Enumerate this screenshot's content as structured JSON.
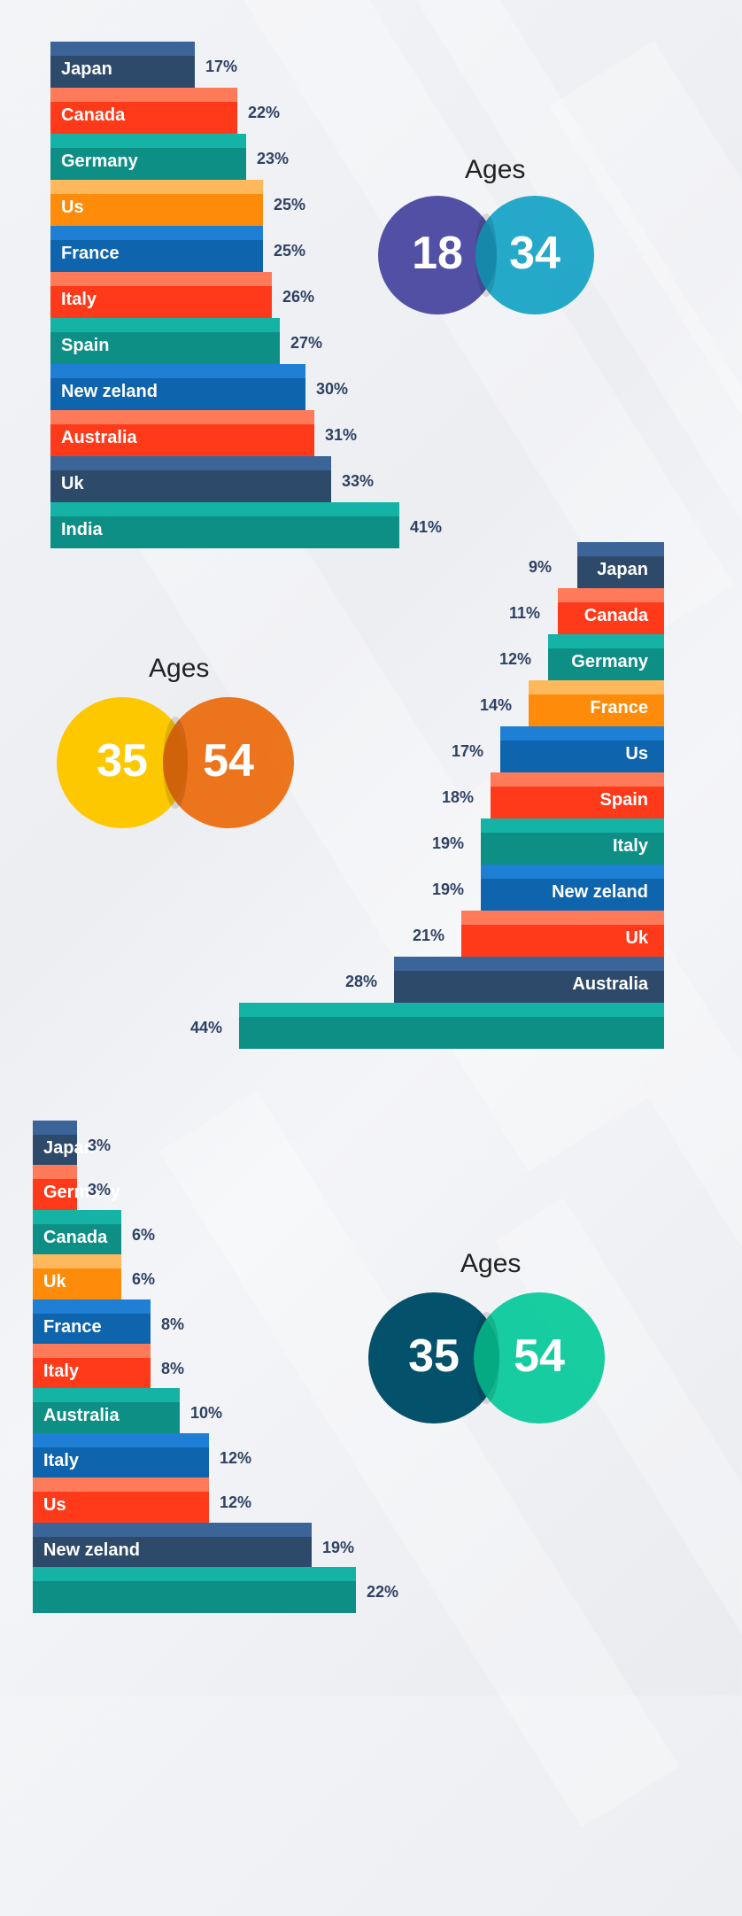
{
  "palette": {
    "navy": {
      "top": "#3b6499",
      "body": "#2d4a6a"
    },
    "orange": {
      "top": "#ff7a59",
      "body": "#ff3a1a"
    },
    "teal": {
      "top": "#14b3a6",
      "body": "#0d8f86"
    },
    "amber": {
      "top": "#ffb95c",
      "body": "#fe8c0a"
    },
    "blue": {
      "top": "#1e7fd4",
      "body": "#0e64ad"
    }
  },
  "chart_data": [
    {
      "type": "bar",
      "title": "Ages",
      "age_range": [
        "18",
        "34"
      ],
      "orientation": "horizontal",
      "anchor": "left",
      "categories": [
        "Japan",
        "Canada",
        "Germany",
        "Us",
        "France",
        "Italy",
        "Spain",
        "New zeland",
        "Australia",
        "Uk",
        "India"
      ],
      "values": [
        17,
        22,
        23,
        25,
        25,
        26,
        27,
        30,
        31,
        33,
        41
      ],
      "value_labels": [
        "17%",
        "22%",
        "23%",
        "25%",
        "25%",
        "26%",
        "27%",
        "30%",
        "31%",
        "33%",
        "41%"
      ],
      "colors": [
        "navy",
        "orange",
        "teal",
        "amber",
        "blue",
        "orange",
        "teal",
        "blue",
        "orange",
        "navy",
        "teal"
      ],
      "circle_colors": [
        "#5150a5",
        "#16a2c5"
      ]
    },
    {
      "type": "bar",
      "title": "Ages",
      "age_range": [
        "35",
        "54"
      ],
      "orientation": "horizontal",
      "anchor": "right",
      "categories": [
        "Japan",
        "Canada",
        "Germany",
        "France",
        "Us",
        "Spain",
        "Italy",
        "New zeland",
        "Uk",
        "Australia",
        ""
      ],
      "values": [
        9,
        11,
        12,
        14,
        17,
        18,
        19,
        19,
        21,
        28,
        44
      ],
      "value_labels": [
        "9%",
        "11%",
        "12%",
        "14%",
        "17%",
        "18%",
        "19%",
        "19%",
        "21%",
        "28%",
        "44%"
      ],
      "colors": [
        "navy",
        "orange",
        "teal",
        "amber",
        "blue",
        "orange",
        "teal",
        "blue",
        "orange",
        "navy",
        "teal"
      ],
      "circle_colors": [
        "#fec800",
        "#ec6a0c"
      ]
    },
    {
      "type": "bar",
      "title": "Ages",
      "age_range": [
        "35",
        "54"
      ],
      "orientation": "horizontal",
      "anchor": "left",
      "categories": [
        "Japan",
        "Germany",
        "Canada",
        "Uk",
        "France",
        "Italy",
        "Australia",
        "Italy",
        "Us",
        "New zeland",
        ""
      ],
      "values": [
        3,
        3,
        6,
        6,
        8,
        8,
        10,
        12,
        12,
        19,
        22
      ],
      "value_labels": [
        "3%",
        "3%",
        "6%",
        "6%",
        "8%",
        "8%",
        "10%",
        "12%",
        "12%",
        "19%",
        "22%"
      ],
      "colors": [
        "navy",
        "orange",
        "teal",
        "amber",
        "blue",
        "orange",
        "teal",
        "blue",
        "orange",
        "navy",
        "teal"
      ],
      "circle_colors": [
        "#04516b",
        "#06c999"
      ]
    }
  ]
}
